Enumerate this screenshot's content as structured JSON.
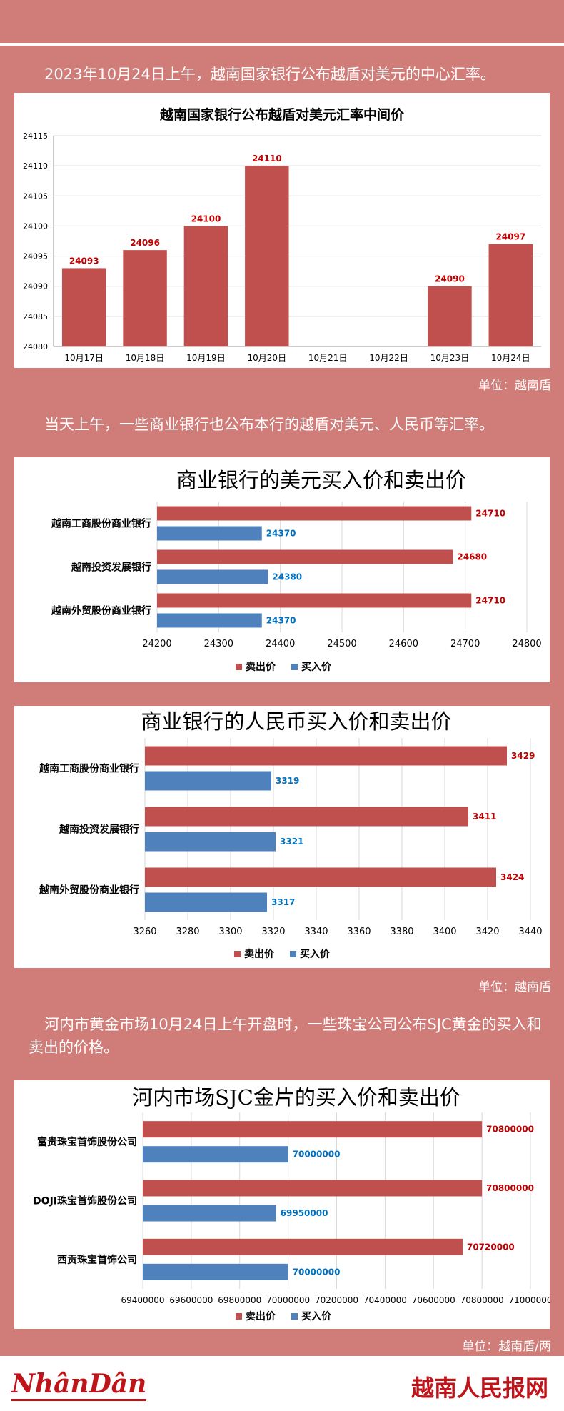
{
  "paragraphs": {
    "p1": "2023年10月24日上午，越南国家银行公布越盾对美元的中心汇率。",
    "p2": "当天上午，一些商业银行也公布本行的越盾对美元、人民币等汇率。",
    "p3": "河内市黄金市场10月24日上午开盘时，一些珠宝公司公布SJC黄金的买入和卖出的价格。"
  },
  "units": {
    "u1": "单位：越南盾",
    "u2": "单位：越南盾",
    "u3": "单位：越南盾/两"
  },
  "footer": {
    "logo_left": "NhânDân",
    "logo_right": "越南人民报网"
  },
  "colors": {
    "sell": "#c0504d",
    "buy": "#4f81bd",
    "sell_label": "#c00000",
    "buy_label": "#0070c0"
  },
  "chart_data": [
    {
      "type": "bar",
      "title": "越南国家银行公布越盾对美元汇率中间价",
      "categories": [
        "10月17日",
        "10月18日",
        "10月19日",
        "10月20日",
        "10月21日",
        "10月22日",
        "10月23日",
        "10月24日"
      ],
      "values": [
        24093,
        24096,
        24100,
        24110,
        null,
        null,
        24090,
        24097
      ],
      "data_labels": [
        "24093",
        "24096",
        "24100",
        "24110",
        "",
        "",
        "24090",
        "24097"
      ],
      "ylim": [
        24080,
        24115
      ],
      "yticks": [
        "24080",
        "24085",
        "24090",
        "24095",
        "24100",
        "24105",
        "24110",
        "24115"
      ],
      "grid": true
    },
    {
      "type": "bar",
      "orientation": "horizontal",
      "title": "商业银行的美元买入价和卖出价",
      "categories": [
        "越南工商股份商业银行",
        "越南投资发展银行",
        "越南外贸股份商业银行"
      ],
      "series": [
        {
          "name": "卖出价",
          "values": [
            24710,
            24680,
            24710
          ]
        },
        {
          "name": "买入价",
          "values": [
            24370,
            24380,
            24370
          ]
        }
      ],
      "xlim": [
        24200,
        24800
      ],
      "xticks": [
        "24200",
        "24300",
        "24400",
        "24500",
        "24600",
        "24700",
        "24800"
      ],
      "legend": "bottom"
    },
    {
      "type": "bar",
      "orientation": "horizontal",
      "title": "商业银行的人民币买入价和卖出价",
      "categories": [
        "越南工商股份商业银行",
        "越南投资发展银行",
        "越南外贸股份商业银行"
      ],
      "series": [
        {
          "name": "卖出价",
          "values": [
            3429,
            3411,
            3424
          ]
        },
        {
          "name": "买入价",
          "values": [
            3319,
            3321,
            3317
          ]
        }
      ],
      "xlim": [
        3260,
        3440
      ],
      "xticks": [
        "3260",
        "3280",
        "3300",
        "3320",
        "3340",
        "3360",
        "3380",
        "3400",
        "3420",
        "3440"
      ],
      "legend": "bottom"
    },
    {
      "type": "bar",
      "orientation": "horizontal",
      "title": "河内市场SJC金片的买入价和卖出价",
      "categories": [
        "富贵珠宝首饰股份公司",
        "DOJI珠宝首饰股份公司",
        "西贡珠宝首饰公司"
      ],
      "series": [
        {
          "name": "卖出价",
          "values": [
            70800000,
            70800000,
            70720000
          ]
        },
        {
          "name": "买入价",
          "values": [
            70000000,
            69950000,
            70000000
          ]
        }
      ],
      "xlim": [
        69400000,
        71000000
      ],
      "xticks": [
        "69400000",
        "69600000",
        "69800000",
        "70000000",
        "70200000",
        "70400000",
        "70600000",
        "70800000",
        "71000000"
      ],
      "legend": "bottom"
    }
  ]
}
